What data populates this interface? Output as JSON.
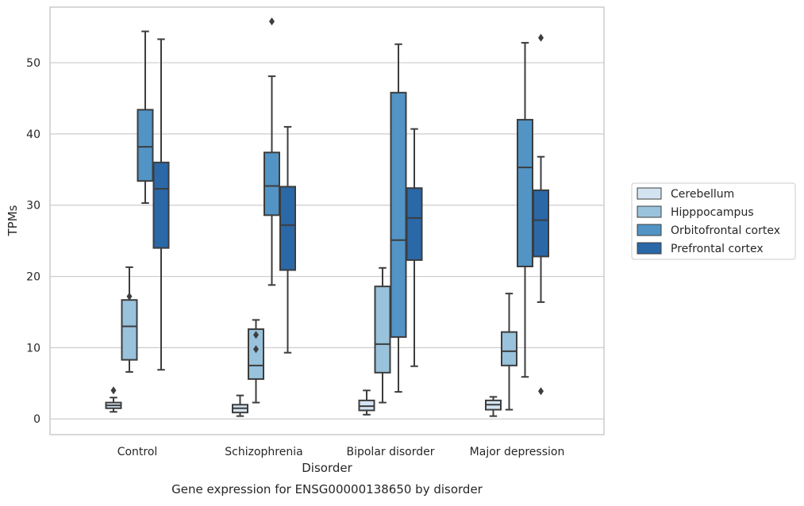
{
  "chart_data": {
    "type": "boxplot",
    "caption": "Gene expression for ENSG00000138650 by disorder",
    "xlabel": "Disorder",
    "ylabel": "TPMs",
    "ylim": [
      -2.2,
      57.8
    ],
    "yticks": [
      0,
      10,
      20,
      30,
      40,
      50
    ],
    "grid": "horizontal",
    "legend_position": "right",
    "categories": [
      "Control",
      "Schizophrenia",
      "Bipolar disorder",
      "Major depression"
    ],
    "series": [
      {
        "name": "Cerebellum",
        "color": "#d4e3f1",
        "boxes": [
          {
            "whislo": 1.0,
            "q1": 1.5,
            "med": 1.9,
            "q3": 2.3,
            "whishi": 3.0,
            "fliers": [
              4.0
            ]
          },
          {
            "whislo": 0.4,
            "q1": 0.9,
            "med": 1.5,
            "q3": 2.0,
            "whishi": 3.3,
            "fliers": []
          },
          {
            "whislo": 0.6,
            "q1": 1.2,
            "med": 1.8,
            "q3": 2.6,
            "whishi": 4.0,
            "fliers": []
          },
          {
            "whislo": 0.4,
            "q1": 1.3,
            "med": 2.0,
            "q3": 2.6,
            "whishi": 3.1,
            "fliers": []
          }
        ]
      },
      {
        "name": "Hipppocampus",
        "color": "#99c2dc",
        "boxes": [
          {
            "whislo": 6.6,
            "q1": 8.3,
            "med": 13.0,
            "q3": 16.7,
            "whishi": 21.3,
            "fliers": [
              17.2
            ]
          },
          {
            "whislo": 2.3,
            "q1": 5.6,
            "med": 7.5,
            "q3": 12.6,
            "whishi": 13.9,
            "fliers": [
              11.8,
              9.8
            ]
          },
          {
            "whislo": 2.3,
            "q1": 6.5,
            "med": 10.5,
            "q3": 18.6,
            "whishi": 21.2,
            "fliers": []
          },
          {
            "whislo": 1.3,
            "q1": 7.5,
            "med": 9.5,
            "q3": 12.2,
            "whishi": 17.6,
            "fliers": []
          }
        ]
      },
      {
        "name": "Orbitofrontal cortex",
        "color": "#5294c5",
        "boxes": [
          {
            "whislo": 30.3,
            "q1": 33.4,
            "med": 38.2,
            "q3": 43.4,
            "whishi": 54.4,
            "fliers": []
          },
          {
            "whislo": 18.8,
            "q1": 28.6,
            "med": 32.7,
            "q3": 37.4,
            "whishi": 48.1,
            "fliers": [
              55.8
            ]
          },
          {
            "whislo": 3.8,
            "q1": 11.5,
            "med": 25.1,
            "q3": 45.8,
            "whishi": 52.6,
            "fliers": []
          },
          {
            "whislo": 5.9,
            "q1": 21.4,
            "med": 35.3,
            "q3": 42.0,
            "whishi": 52.8,
            "fliers": []
          }
        ]
      },
      {
        "name": "Prefrontal cortex",
        "color": "#2a68a8",
        "boxes": [
          {
            "whislo": 6.9,
            "q1": 24.0,
            "med": 32.3,
            "q3": 36.0,
            "whishi": 53.3,
            "fliers": []
          },
          {
            "whislo": 9.3,
            "q1": 20.9,
            "med": 27.2,
            "q3": 32.6,
            "whishi": 41.0,
            "fliers": []
          },
          {
            "whislo": 7.4,
            "q1": 22.3,
            "med": 28.2,
            "q3": 32.4,
            "whishi": 40.7,
            "fliers": []
          },
          {
            "whislo": 16.4,
            "q1": 22.8,
            "med": 27.9,
            "q3": 32.1,
            "whishi": 36.8,
            "fliers": [
              53.5,
              3.9
            ]
          }
        ]
      }
    ]
  }
}
